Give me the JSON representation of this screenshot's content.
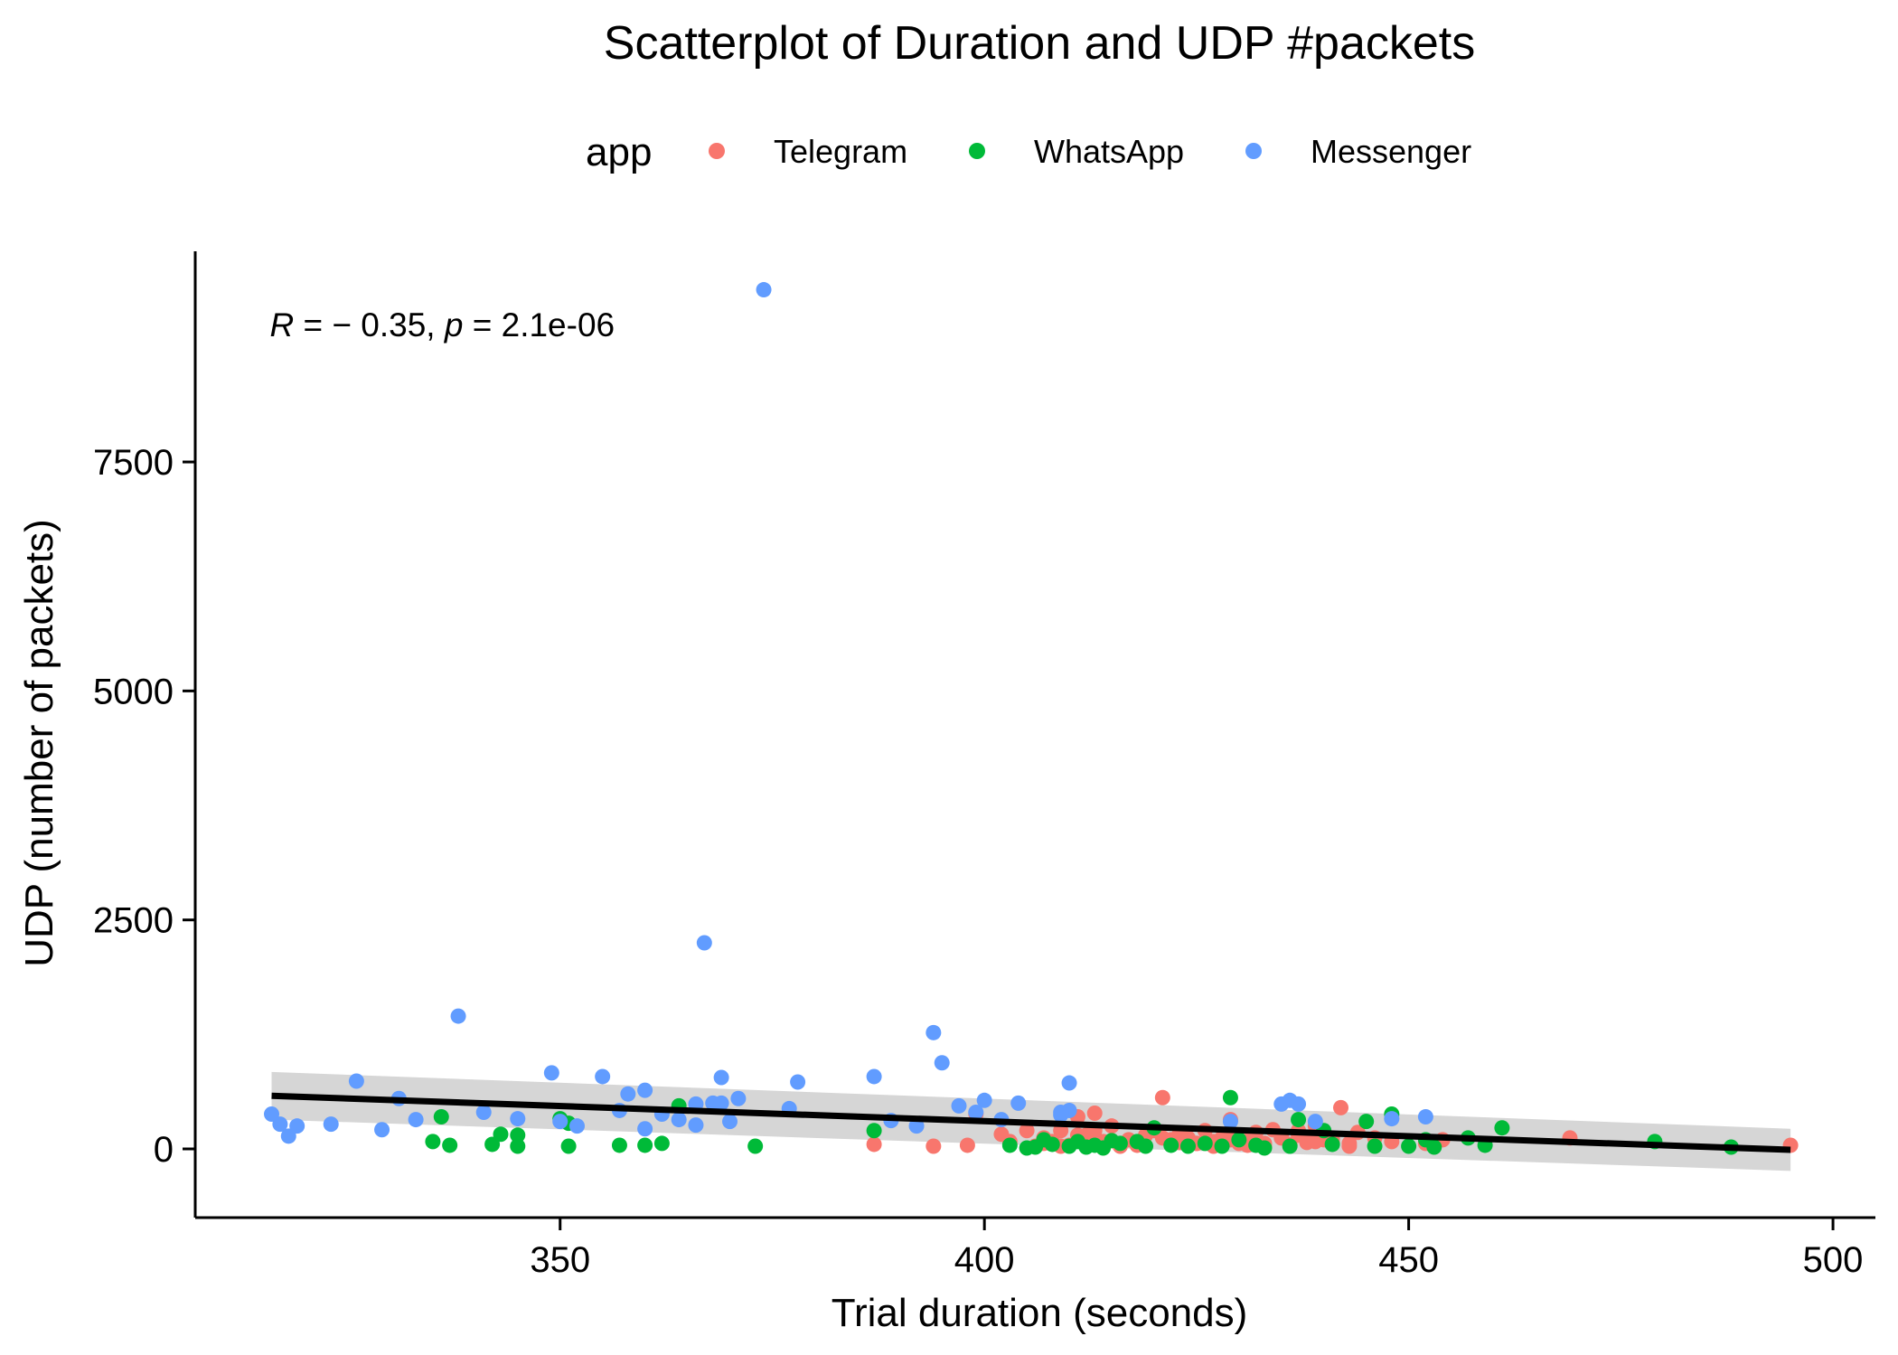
{
  "chart_data": {
    "type": "scatter",
    "title": "Scatterplot of Duration and UDP #packets",
    "xlabel": "Trial duration (seconds)",
    "ylabel": "UDP (number of packets)",
    "xlim": [
      307,
      505
    ],
    "ylim": [
      -750,
      9800
    ],
    "xticks": [
      350,
      400,
      450,
      500
    ],
    "yticks": [
      0,
      2500,
      5000,
      7500
    ],
    "grid": false,
    "legend": {
      "title": "app",
      "placement": "top",
      "entries": [
        "Telegram",
        "WhatsApp",
        "Messenger"
      ]
    },
    "annotation": {
      "r_symbol": "R",
      "r_text": " = − 0.35, ",
      "p_symbol": "p",
      "p_text": " = 2.1e-06",
      "x": 316,
      "y": 9000
    },
    "regression": {
      "x": [
        316,
        495
      ],
      "y": [
        580,
        -10
      ],
      "band_upper": [
        840,
        220
      ],
      "band_lower": [
        320,
        -240
      ]
    },
    "series": [
      {
        "name": "Telegram",
        "color": "#F8766D",
        "x": [
          387,
          394,
          398,
          399,
          402,
          403,
          405,
          406,
          407,
          408,
          409,
          410,
          411,
          412,
          413,
          414,
          415,
          416,
          417,
          418,
          419,
          420,
          421,
          422,
          423,
          424,
          425,
          426,
          427,
          428,
          429,
          430,
          431,
          432,
          433,
          434,
          435,
          436,
          437,
          438,
          439,
          440,
          441,
          442,
          443,
          444,
          446,
          448,
          452,
          454,
          469,
          495,
          407,
          409,
          411,
          413,
          415,
          418,
          421,
          423,
          425,
          427,
          429,
          431,
          433,
          435,
          437,
          439,
          441,
          443
        ],
        "y": [
          50,
          30,
          40,
          380,
          160,
          80,
          200,
          30,
          120,
          80,
          200,
          40,
          350,
          150,
          390,
          80,
          250,
          30,
          100,
          60,
          150,
          200,
          560,
          100,
          70,
          120,
          60,
          200,
          80,
          120,
          320,
          60,
          40,
          180,
          30,
          210,
          120,
          50,
          150,
          70,
          250,
          100,
          60,
          450,
          30,
          180,
          120,
          80,
          60,
          100,
          120,
          40,
          60,
          30,
          150,
          200,
          90,
          40,
          120,
          170,
          60,
          30,
          100,
          90,
          60,
          140,
          200,
          80,
          110,
          60
        ]
      },
      {
        "name": "WhatsApp",
        "color": "#00BA38",
        "x": [
          335,
          336,
          337,
          342,
          343,
          345,
          345,
          350,
          351,
          351,
          357,
          360,
          362,
          364,
          373,
          387,
          403,
          405,
          406,
          407,
          408,
          410,
          411,
          412,
          413,
          414,
          415,
          416,
          418,
          419,
          420,
          422,
          424,
          426,
          428,
          429,
          430,
          432,
          433,
          436,
          437,
          440,
          441,
          445,
          446,
          448,
          450,
          452,
          453,
          457,
          459,
          461,
          479,
          488
        ],
        "y": [
          80,
          350,
          40,
          50,
          160,
          30,
          150,
          330,
          30,
          280,
          40,
          40,
          60,
          470,
          30,
          200,
          40,
          10,
          20,
          100,
          50,
          30,
          80,
          20,
          40,
          10,
          90,
          60,
          80,
          30,
          230,
          40,
          30,
          60,
          30,
          560,
          100,
          40,
          10,
          30,
          320,
          200,
          50,
          300,
          30,
          380,
          30,
          100,
          20,
          120,
          40,
          230,
          80,
          20
        ]
      },
      {
        "name": "Messenger",
        "color": "#619CFF",
        "x": [
          316,
          317,
          318,
          319,
          323,
          326,
          329,
          331,
          333,
          338,
          341,
          345,
          349,
          350,
          352,
          355,
          357,
          358,
          360,
          360,
          362,
          364,
          366,
          366,
          368,
          369,
          369,
          370,
          371,
          374,
          377,
          378,
          387,
          389,
          392,
          394,
          395,
          397,
          399,
          400,
          402,
          404,
          409,
          410,
          410,
          436,
          437,
          367,
          435,
          439,
          448,
          452,
          429,
          409
        ],
        "y": [
          380,
          270,
          140,
          250,
          270,
          740,
          210,
          550,
          320,
          1450,
          400,
          330,
          830,
          300,
          250,
          790,
          420,
          600,
          640,
          220,
          380,
          320,
          490,
          260,
          500,
          500,
          780,
          300,
          550,
          9380,
          440,
          730,
          790,
          310,
          250,
          1270,
          940,
          470,
          400,
          530,
          320,
          500,
          370,
          420,
          720,
          530,
          490,
          2250,
          490,
          300,
          330,
          350,
          300,
          400
        ]
      }
    ]
  }
}
